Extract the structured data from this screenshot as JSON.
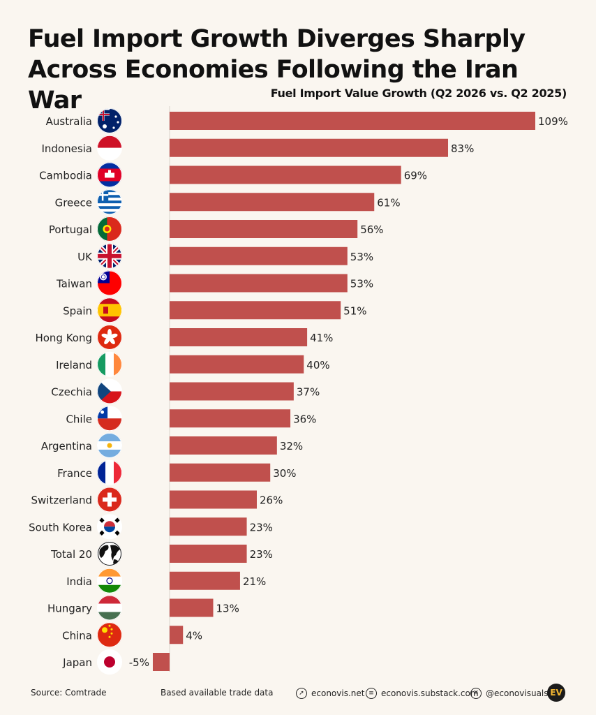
{
  "title": "Fuel Import Growth Diverges Sharply Across Economies Following the Iran War",
  "subtitle": "Fuel Import Value Growth (Q2 2026 vs. Q2 2025)",
  "chart_data": {
    "type": "bar",
    "orientation": "horizontal",
    "value_suffix": "%",
    "bar_color": "#c0504d",
    "grid": false,
    "xlim": [
      -5,
      109
    ],
    "categories": [
      "Australia",
      "Indonesia",
      "Cambodia",
      "Greece",
      "Portugal",
      "UK",
      "Taiwan",
      "Spain",
      "Hong Kong",
      "Ireland",
      "Czechia",
      "Chile",
      "Argentina",
      "France",
      "Switzerland",
      "South Korea",
      "Total 20",
      "India",
      "Hungary",
      "China",
      "Japan"
    ],
    "values": [
      109,
      83,
      69,
      61,
      56,
      53,
      53,
      51,
      41,
      40,
      37,
      36,
      32,
      30,
      26,
      23,
      23,
      21,
      13,
      4,
      -5
    ],
    "flag_icons": [
      "australia-flag",
      "indonesia-flag",
      "cambodia-flag",
      "greece-flag",
      "portugal-flag",
      "uk-flag",
      "taiwan-flag",
      "spain-flag",
      "hong-kong-flag",
      "ireland-flag",
      "czechia-flag",
      "chile-flag",
      "argentina-flag",
      "france-flag",
      "switzerland-flag",
      "south-korea-flag",
      "globe-icon",
      "india-flag",
      "hungary-flag",
      "china-flag",
      "japan-flag"
    ]
  },
  "footer": {
    "source": "Source: Comtrade",
    "note": "Based available trade data",
    "website": "econovis.net",
    "substack": "econovis.substack.com",
    "social": "@econovisuals",
    "logo": "EV",
    "website_icon": "cursor-icon",
    "substack_icon": "newsletter-icon",
    "social_icon": "x-icon"
  }
}
